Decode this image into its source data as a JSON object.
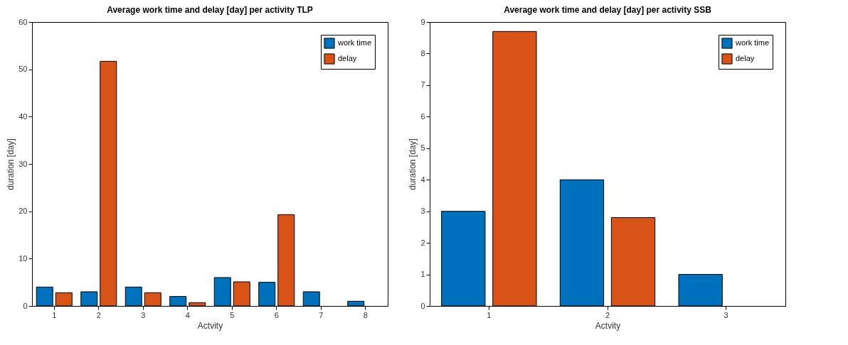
{
  "chart_data": [
    {
      "type": "bar",
      "title": "Average work time and delay [day] per activity TLP",
      "xlabel": "Actvity",
      "ylabel": "duration [day]",
      "categories": [
        "1",
        "2",
        "3",
        "4",
        "5",
        "6",
        "7",
        "8"
      ],
      "series": [
        {
          "name": "work time",
          "color": "#0072bd",
          "values": [
            4,
            3,
            4,
            2,
            6,
            5,
            3,
            1
          ]
        },
        {
          "name": "delay",
          "color": "#d95319",
          "values": [
            2.8,
            51.7,
            2.8,
            0.7,
            5.1,
            19.3,
            null,
            null
          ]
        }
      ],
      "ylim": [
        0,
        60
      ],
      "yticks": [
        0,
        10,
        20,
        30,
        40,
        50,
        60
      ],
      "legend": "top right"
    },
    {
      "type": "bar",
      "title": "Average work time and delay [day] per activity SSB",
      "xlabel": "Actvity",
      "ylabel": "duration [day]",
      "categories": [
        "1",
        "2",
        "3"
      ],
      "series": [
        {
          "name": "work time",
          "color": "#0072bd",
          "values": [
            3,
            4,
            1
          ]
        },
        {
          "name": "delay",
          "color": "#d95319",
          "values": [
            8.7,
            2.8,
            null
          ]
        }
      ],
      "ylim": [
        0,
        9
      ],
      "yticks": [
        0,
        1,
        2,
        3,
        4,
        5,
        6,
        7,
        8,
        9
      ],
      "legend": "top right"
    }
  ]
}
